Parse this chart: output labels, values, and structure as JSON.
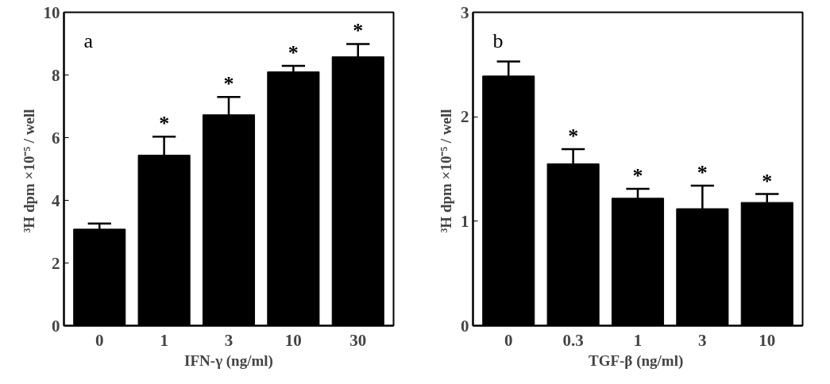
{
  "chart_data": [
    {
      "type": "bar",
      "categories": [
        "0",
        "1",
        "3",
        "10",
        "30"
      ],
      "values": [
        3.08,
        5.44,
        6.73,
        8.1,
        8.58
      ],
      "color": "#000000",
      "errors": [
        [
          3.08,
          3.26
        ],
        [
          5.44,
          6.03
        ],
        [
          6.73,
          7.3
        ],
        [
          8.1,
          8.29
        ],
        [
          8.58,
          8.99
        ]
      ],
      "xlabel": "IFN-γ (ng/ml)",
      "ylabel": "³H  dpm ×10⁻⁵ / well",
      "ylim": [
        0,
        10
      ],
      "yticks": [
        0,
        2,
        4,
        6,
        8,
        10
      ],
      "grid": false,
      "annotations": [
        "a",
        {
          "text": "*",
          "x": "1",
          "y": 6.03
        },
        {
          "text": "*",
          "x": "3",
          "y": 7.3
        },
        {
          "text": "*",
          "x": "10",
          "y": 8.29
        },
        {
          "text": "*",
          "x": "30",
          "y": 8.99
        }
      ]
    },
    {
      "type": "bar",
      "categories": [
        "0",
        "0.3",
        "1",
        "3",
        "10"
      ],
      "values": [
        2.39,
        1.55,
        1.22,
        1.12,
        1.18
      ],
      "color": "#000000",
      "errors": [
        [
          2.39,
          2.53
        ],
        [
          1.55,
          1.69
        ],
        [
          1.22,
          1.31
        ],
        [
          1.12,
          1.34
        ],
        [
          1.18,
          1.26
        ]
      ],
      "xlabel": "TGF-β  (ng/ml)",
      "ylabel": "³H  dpm ×10⁻⁵ / well",
      "ylim": [
        0,
        3
      ],
      "yticks": [
        0,
        1,
        2,
        3
      ],
      "grid": false,
      "annotations": [
        "b",
        {
          "text": "*",
          "x": "0.3",
          "y": 1.69
        },
        {
          "text": "*",
          "x": "1",
          "y": 1.31
        },
        {
          "text": "*",
          "x": "3",
          "y": 1.34
        },
        {
          "text": "*",
          "x": "10",
          "y": 1.26
        }
      ]
    }
  ]
}
